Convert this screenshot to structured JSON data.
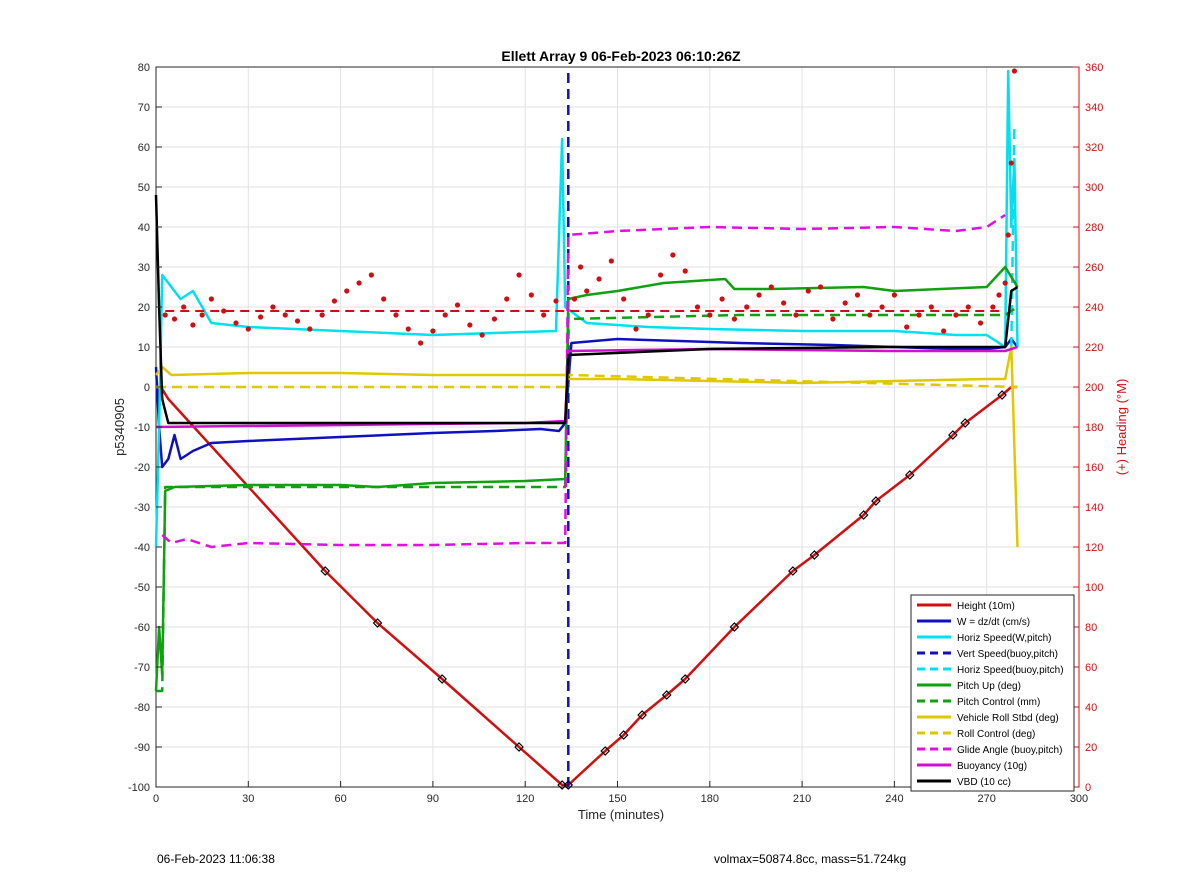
{
  "footer": {
    "timestamp": "06-Feb-2023 11:06:38",
    "volmax": "volmax=50874.8cc, mass=51.724kg"
  },
  "chart_data": {
    "type": "line",
    "title": "Ellett Array 9 06-Feb-2023 06:10:26Z",
    "xlabel": "Time (minutes)",
    "ylabel": "p5340905",
    "y2label": "(+) Heading (°M)",
    "xlim": [
      0,
      300
    ],
    "ylim": [
      -100,
      80
    ],
    "y2lim": [
      0,
      360
    ],
    "xticks": [
      "0",
      "30",
      "60",
      "90",
      "120",
      "150",
      "180",
      "210",
      "240",
      "270",
      "300"
    ],
    "yticks": [
      "-100",
      "-90",
      "-80",
      "-70",
      "-60",
      "-50",
      "-40",
      "-30",
      "-20",
      "-10",
      "0",
      "10",
      "20",
      "30",
      "40",
      "50",
      "60",
      "70",
      "80"
    ],
    "y2ticks": [
      "0",
      "20",
      "40",
      "60",
      "80",
      "100",
      "120",
      "140",
      "160",
      "180",
      "200",
      "220",
      "240",
      "260",
      "280",
      "300",
      "320",
      "340",
      "360"
    ],
    "grid": true,
    "legend_position": "bottom-right",
    "colors": {
      "height": "#d01010",
      "w": "#1010c0",
      "horiz": "#00e0f0",
      "pitch": "#10a010",
      "roll": "#e0c800",
      "glide": "#e010e0",
      "buoy": "#d010d0",
      "vbd": "#000000",
      "heading": "#d01010"
    },
    "series": [
      {
        "name": "Height (10m)",
        "key": "height",
        "style": "solid",
        "points": [
          [
            0,
            -1
          ],
          [
            2,
            -0.5
          ],
          [
            4,
            -3
          ],
          [
            55,
            -46
          ],
          [
            72,
            -59
          ],
          [
            93,
            -73
          ],
          [
            118,
            -90
          ],
          [
            132,
            -99.5
          ],
          [
            134,
            -99.5
          ],
          [
            146,
            -91
          ],
          [
            152,
            -87
          ],
          [
            158,
            -82
          ],
          [
            166,
            -77
          ],
          [
            172,
            -73
          ],
          [
            188,
            -60
          ],
          [
            207,
            -46
          ],
          [
            214,
            -42
          ],
          [
            230,
            -32
          ],
          [
            234,
            -28.5
          ],
          [
            245,
            -22
          ],
          [
            259,
            -12
          ],
          [
            263,
            -9
          ],
          [
            275,
            -2
          ],
          [
            278,
            0
          ],
          [
            280,
            0
          ]
        ]
      },
      {
        "name": "W = dz/dt (cm/s)",
        "key": "w",
        "style": "solid",
        "points": [
          [
            0,
            5
          ],
          [
            1,
            -10
          ],
          [
            2,
            -20
          ],
          [
            4,
            -18
          ],
          [
            6,
            -12
          ],
          [
            8,
            -18
          ],
          [
            12,
            -16
          ],
          [
            18,
            -14
          ],
          [
            30,
            -13.5
          ],
          [
            60,
            -12.5
          ],
          [
            90,
            -11.5
          ],
          [
            110,
            -11
          ],
          [
            125,
            -10.5
          ],
          [
            131,
            -11
          ],
          [
            133,
            -9
          ],
          [
            135,
            11
          ],
          [
            150,
            12
          ],
          [
            170,
            11.5
          ],
          [
            190,
            11
          ],
          [
            220,
            10.5
          ],
          [
            240,
            10
          ],
          [
            260,
            9.5
          ],
          [
            270,
            9.5
          ],
          [
            276,
            10
          ],
          [
            278,
            12
          ],
          [
            280,
            10
          ]
        ]
      },
      {
        "name": "Horiz Speed(W,pitch)",
        "key": "horiz",
        "style": "solid",
        "points": [
          [
            0,
            -40
          ],
          [
            1,
            -10
          ],
          [
            2,
            28
          ],
          [
            5,
            25
          ],
          [
            8,
            22
          ],
          [
            12,
            24
          ],
          [
            18,
            16
          ],
          [
            30,
            15
          ],
          [
            60,
            14
          ],
          [
            90,
            13
          ],
          [
            110,
            13.5
          ],
          [
            130,
            14
          ],
          [
            132,
            62
          ],
          [
            133,
            20
          ],
          [
            140,
            16
          ],
          [
            160,
            15
          ],
          [
            180,
            14.5
          ],
          [
            210,
            14
          ],
          [
            240,
            14
          ],
          [
            260,
            13
          ],
          [
            270,
            13
          ],
          [
            276,
            10
          ],
          [
            277,
            79
          ],
          [
            278,
            40
          ],
          [
            279,
            57
          ],
          [
            280,
            10
          ]
        ]
      },
      {
        "name": "Vert Speed(buoy,pitch)",
        "key": "w",
        "style": "dashed",
        "points": [
          [
            134,
            -100
          ],
          [
            134,
            80
          ]
        ]
      },
      {
        "name": "Horiz Speed(buoy,pitch)",
        "key": "horiz",
        "style": "dashed",
        "points": [
          [
            278,
            10
          ],
          [
            279,
            65
          ]
        ]
      },
      {
        "name": "Pitch Up (deg)",
        "key": "pitch",
        "style": "solid",
        "points": [
          [
            0,
            -76
          ],
          [
            1,
            -60
          ],
          [
            2,
            -72
          ],
          [
            3,
            -26
          ],
          [
            6,
            -25
          ],
          [
            30,
            -24.5
          ],
          [
            60,
            -24.5
          ],
          [
            72,
            -25
          ],
          [
            90,
            -24
          ],
          [
            120,
            -23.5
          ],
          [
            133,
            -23
          ],
          [
            134,
            22
          ],
          [
            140,
            23
          ],
          [
            150,
            24
          ],
          [
            165,
            26
          ],
          [
            185,
            27
          ],
          [
            188,
            24.5
          ],
          [
            200,
            24.5
          ],
          [
            230,
            25
          ],
          [
            240,
            24
          ],
          [
            270,
            25
          ],
          [
            276,
            30
          ],
          [
            280,
            25
          ]
        ]
      },
      {
        "name": "Pitch Control (mm)",
        "key": "pitch",
        "style": "dashed",
        "points": [
          [
            0,
            -76
          ],
          [
            2,
            -76
          ],
          [
            3,
            -25
          ],
          [
            133,
            -25
          ],
          [
            134,
            17
          ],
          [
            190,
            18
          ],
          [
            276,
            18
          ],
          [
            280,
            20
          ]
        ]
      },
      {
        "name": "Vehicle Roll Stbd (deg)",
        "key": "roll",
        "style": "solid",
        "points": [
          [
            0,
            3
          ],
          [
            2,
            5
          ],
          [
            5,
            3
          ],
          [
            30,
            3.5
          ],
          [
            60,
            3.5
          ],
          [
            90,
            3
          ],
          [
            120,
            3
          ],
          [
            133,
            3
          ],
          [
            134,
            2
          ],
          [
            150,
            2
          ],
          [
            180,
            1.5
          ],
          [
            210,
            1
          ],
          [
            240,
            1.5
          ],
          [
            270,
            2
          ],
          [
            276,
            2
          ],
          [
            278,
            10
          ],
          [
            280,
            -40
          ]
        ]
      },
      {
        "name": "Roll Control (deg)",
        "key": "roll",
        "style": "dashed",
        "points": [
          [
            0,
            0
          ],
          [
            133,
            0
          ],
          [
            134,
            3
          ],
          [
            280,
            0
          ]
        ]
      },
      {
        "name": "Glide Angle (buoy,pitch)",
        "key": "glide",
        "style": "dashed",
        "points": [
          [
            2,
            -37
          ],
          [
            5,
            -39
          ],
          [
            10,
            -38
          ],
          [
            18,
            -40
          ],
          [
            30,
            -39
          ],
          [
            60,
            -39.5
          ],
          [
            90,
            -39.5
          ],
          [
            120,
            -39
          ],
          [
            133,
            -39
          ],
          [
            134,
            38
          ],
          [
            150,
            39
          ],
          [
            180,
            40
          ],
          [
            210,
            39.5
          ],
          [
            240,
            40
          ],
          [
            260,
            39
          ],
          [
            270,
            40
          ],
          [
            276,
            43
          ]
        ]
      },
      {
        "name": "Buoyancy (10g)",
        "key": "buoy",
        "style": "solid",
        "points": [
          [
            0,
            -10
          ],
          [
            60,
            -9.5
          ],
          [
            120,
            -9
          ],
          [
            133,
            -8.5
          ],
          [
            134,
            9
          ],
          [
            180,
            9.5
          ],
          [
            240,
            9
          ],
          [
            276,
            9
          ],
          [
            280,
            10
          ]
        ]
      },
      {
        "name": "VBD (10 cc)",
        "key": "vbd",
        "style": "solid",
        "points": [
          [
            0,
            48
          ],
          [
            1,
            20
          ],
          [
            2,
            -3
          ],
          [
            4,
            -9
          ],
          [
            60,
            -9
          ],
          [
            133,
            -9
          ],
          [
            134,
            8
          ],
          [
            180,
            9.5
          ],
          [
            240,
            10
          ],
          [
            276,
            10
          ],
          [
            278,
            24
          ],
          [
            280,
            25
          ]
        ]
      }
    ],
    "heading_reference": 238,
    "heading_points": [
      [
        3,
        236
      ],
      [
        6,
        234
      ],
      [
        9,
        240
      ],
      [
        12,
        231
      ],
      [
        15,
        236
      ],
      [
        18,
        244
      ],
      [
        22,
        238
      ],
      [
        26,
        232
      ],
      [
        30,
        229
      ],
      [
        34,
        235
      ],
      [
        38,
        240
      ],
      [
        42,
        236
      ],
      [
        46,
        233
      ],
      [
        50,
        229
      ],
      [
        54,
        236
      ],
      [
        58,
        243
      ],
      [
        62,
        248
      ],
      [
        66,
        252
      ],
      [
        70,
        256
      ],
      [
        74,
        244
      ],
      [
        78,
        236
      ],
      [
        82,
        229
      ],
      [
        86,
        222
      ],
      [
        90,
        228
      ],
      [
        94,
        236
      ],
      [
        98,
        241
      ],
      [
        102,
        231
      ],
      [
        106,
        226
      ],
      [
        110,
        234
      ],
      [
        114,
        244
      ],
      [
        118,
        256
      ],
      [
        122,
        246
      ],
      [
        126,
        236
      ],
      [
        130,
        243
      ],
      [
        136,
        244
      ],
      [
        138,
        260
      ],
      [
        140,
        248
      ],
      [
        144,
        254
      ],
      [
        148,
        263
      ],
      [
        152,
        244
      ],
      [
        156,
        229
      ],
      [
        160,
        236
      ],
      [
        164,
        256
      ],
      [
        168,
        266
      ],
      [
        172,
        258
      ],
      [
        176,
        240
      ],
      [
        180,
        236
      ],
      [
        184,
        244
      ],
      [
        188,
        234
      ],
      [
        192,
        240
      ],
      [
        196,
        246
      ],
      [
        200,
        250
      ],
      [
        204,
        242
      ],
      [
        208,
        236
      ],
      [
        212,
        248
      ],
      [
        216,
        250
      ],
      [
        220,
        234
      ],
      [
        224,
        242
      ],
      [
        228,
        246
      ],
      [
        232,
        236
      ],
      [
        236,
        240
      ],
      [
        240,
        246
      ],
      [
        244,
        230
      ],
      [
        248,
        236
      ],
      [
        252,
        240
      ],
      [
        256,
        228
      ],
      [
        260,
        236
      ],
      [
        264,
        240
      ],
      [
        268,
        232
      ],
      [
        272,
        240
      ],
      [
        274,
        246
      ],
      [
        276,
        252
      ],
      [
        277,
        276
      ],
      [
        278,
        312
      ],
      [
        279,
        358
      ]
    ]
  }
}
